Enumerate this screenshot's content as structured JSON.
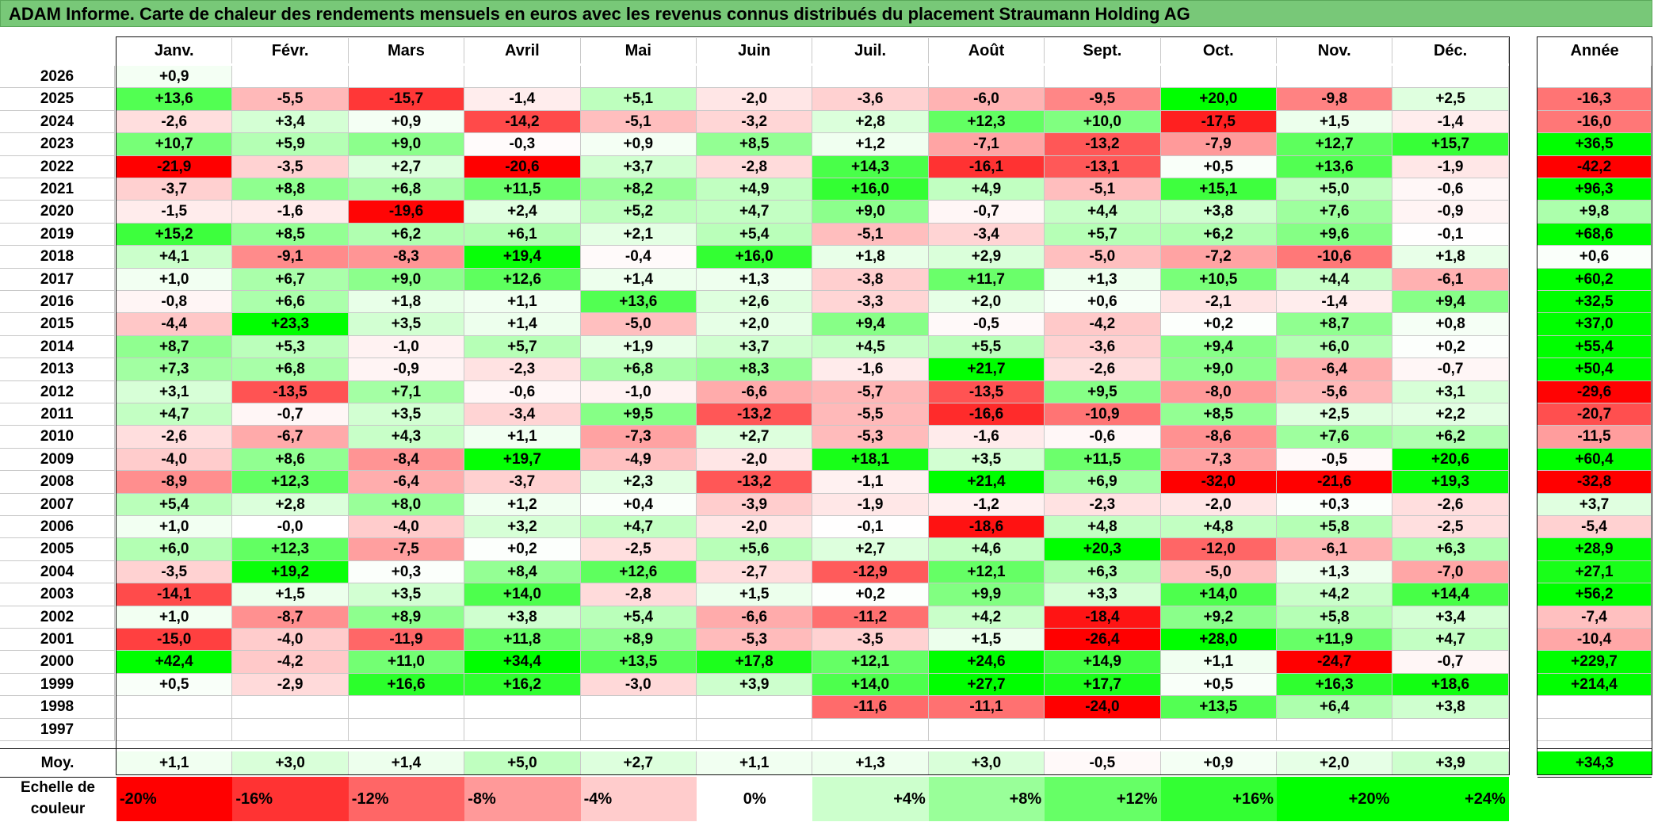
{
  "title": "ADAM Informe. Carte de chaleur des rendements mensuels en euros avec les revenus connus distribués du placement Straumann Holding AG",
  "chart_data": {
    "type": "heatmap",
    "title": "ADAM Informe. Carte de chaleur des rendements mensuels en euros avec les revenus connus distribués du placement Straumann Holding AG",
    "columns": [
      "Janv.",
      "Févr.",
      "Mars",
      "Avril",
      "Mai",
      "Juin",
      "Juil.",
      "Août",
      "Sept.",
      "Oct.",
      "Nov.",
      "Déc."
    ],
    "year_header": "Année",
    "rows": [
      {
        "year": "2026",
        "values": [
          "+0,9",
          "",
          "",
          "",
          "",
          "",
          "",
          "",
          "",
          "",
          "",
          ""
        ],
        "annual": ""
      },
      {
        "year": "2025",
        "values": [
          "+13,6",
          "-5,5",
          "-15,7",
          "-1,4",
          "+5,1",
          "-2,0",
          "-3,6",
          "-6,0",
          "-9,5",
          "+20,0",
          "-9,8",
          "+2,5"
        ],
        "annual": "-16,3"
      },
      {
        "year": "2024",
        "values": [
          "-2,6",
          "+3,4",
          "+0,9",
          "-14,2",
          "-5,1",
          "-3,2",
          "+2,8",
          "+12,3",
          "+10,0",
          "-17,5",
          "+1,5",
          "-1,4"
        ],
        "annual": "-16,0"
      },
      {
        "year": "2023",
        "values": [
          "+10,7",
          "+5,9",
          "+9,0",
          "-0,3",
          "+0,9",
          "+8,5",
          "+1,2",
          "-7,1",
          "-13,2",
          "-7,9",
          "+12,7",
          "+15,7"
        ],
        "annual": "+36,5"
      },
      {
        "year": "2022",
        "values": [
          "-21,9",
          "-3,5",
          "+2,7",
          "-20,6",
          "+3,7",
          "-2,8",
          "+14,3",
          "-16,1",
          "-13,1",
          "+0,5",
          "+13,6",
          "-1,9"
        ],
        "annual": "-42,2"
      },
      {
        "year": "2021",
        "values": [
          "-3,7",
          "+8,8",
          "+6,8",
          "+11,5",
          "+8,2",
          "+4,9",
          "+16,0",
          "+4,9",
          "-5,1",
          "+15,1",
          "+5,0",
          "-0,6"
        ],
        "annual": "+96,3"
      },
      {
        "year": "2020",
        "values": [
          "-1,5",
          "-1,6",
          "-19,6",
          "+2,4",
          "+5,2",
          "+4,7",
          "+9,0",
          "-0,7",
          "+4,4",
          "+3,8",
          "+7,6",
          "-0,9"
        ],
        "annual": "+9,8"
      },
      {
        "year": "2019",
        "values": [
          "+15,2",
          "+8,5",
          "+6,2",
          "+6,1",
          "+2,1",
          "+5,4",
          "-5,1",
          "-3,4",
          "+5,7",
          "+6,2",
          "+9,6",
          "-0,1"
        ],
        "annual": "+68,6"
      },
      {
        "year": "2018",
        "values": [
          "+4,1",
          "-9,1",
          "-8,3",
          "+19,4",
          "-0,4",
          "+16,0",
          "+1,8",
          "+2,9",
          "-5,0",
          "-7,2",
          "-10,6",
          "+1,8"
        ],
        "annual": "+0,6"
      },
      {
        "year": "2017",
        "values": [
          "+1,0",
          "+6,7",
          "+9,0",
          "+12,6",
          "+1,4",
          "+1,3",
          "-3,8",
          "+11,7",
          "+1,3",
          "+10,5",
          "+4,4",
          "-6,1"
        ],
        "annual": "+60,2"
      },
      {
        "year": "2016",
        "values": [
          "-0,8",
          "+6,6",
          "+1,8",
          "+1,1",
          "+13,6",
          "+2,6",
          "-3,3",
          "+2,0",
          "+0,6",
          "-2,1",
          "-1,4",
          "+9,4"
        ],
        "annual": "+32,5"
      },
      {
        "year": "2015",
        "values": [
          "-4,4",
          "+23,3",
          "+3,5",
          "+1,4",
          "-5,0",
          "+2,0",
          "+9,4",
          "-0,5",
          "-4,2",
          "+0,2",
          "+8,7",
          "+0,8"
        ],
        "annual": "+37,0"
      },
      {
        "year": "2014",
        "values": [
          "+8,7",
          "+5,3",
          "-1,0",
          "+5,7",
          "+1,9",
          "+3,7",
          "+4,5",
          "+5,5",
          "-3,6",
          "+9,4",
          "+6,0",
          "+0,2"
        ],
        "annual": "+55,4"
      },
      {
        "year": "2013",
        "values": [
          "+7,3",
          "+6,8",
          "-0,9",
          "-2,3",
          "+6,8",
          "+8,3",
          "-1,6",
          "+21,7",
          "-2,6",
          "+9,0",
          "-6,4",
          "-0,7"
        ],
        "annual": "+50,4"
      },
      {
        "year": "2012",
        "values": [
          "+3,1",
          "-13,5",
          "+7,1",
          "-0,6",
          "-1,0",
          "-6,6",
          "-5,7",
          "-13,5",
          "+9,5",
          "-8,0",
          "-5,6",
          "+3,1"
        ],
        "annual": "-29,6"
      },
      {
        "year": "2011",
        "values": [
          "+4,7",
          "-0,7",
          "+3,5",
          "-3,4",
          "+9,5",
          "-13,2",
          "-5,5",
          "-16,6",
          "-10,9",
          "+8,5",
          "+2,5",
          "+2,2"
        ],
        "annual": "-20,7"
      },
      {
        "year": "2010",
        "values": [
          "-2,6",
          "-6,7",
          "+4,3",
          "+1,1",
          "-7,3",
          "+2,7",
          "-5,3",
          "-1,6",
          "-0,6",
          "-8,6",
          "+7,6",
          "+6,2"
        ],
        "annual": "-11,5"
      },
      {
        "year": "2009",
        "values": [
          "-4,0",
          "+8,6",
          "-8,4",
          "+19,7",
          "-4,9",
          "-2,0",
          "+18,1",
          "+3,5",
          "+11,5",
          "-7,3",
          "-0,5",
          "+20,6"
        ],
        "annual": "+60,4"
      },
      {
        "year": "2008",
        "values": [
          "-8,9",
          "+12,3",
          "-6,4",
          "-3,7",
          "+2,3",
          "-13,2",
          "-1,1",
          "+21,4",
          "+6,9",
          "-32,0",
          "-21,6",
          "+19,3"
        ],
        "annual": "-32,8"
      },
      {
        "year": "2007",
        "values": [
          "+5,4",
          "+2,8",
          "+8,0",
          "+1,2",
          "+0,4",
          "-3,9",
          "-1,9",
          "-1,2",
          "-2,3",
          "-2,0",
          "+0,3",
          "-2,6"
        ],
        "annual": "+3,7"
      },
      {
        "year": "2006",
        "values": [
          "+1,0",
          "-0,0",
          "-4,0",
          "+3,2",
          "+4,7",
          "-2,0",
          "-0,1",
          "-18,6",
          "+4,8",
          "+4,8",
          "+5,8",
          "-2,5"
        ],
        "annual": "-5,4"
      },
      {
        "year": "2005",
        "values": [
          "+6,0",
          "+12,3",
          "-7,5",
          "+0,2",
          "-2,5",
          "+5,6",
          "+2,7",
          "+4,6",
          "+20,3",
          "-12,0",
          "-6,1",
          "+6,3"
        ],
        "annual": "+28,9"
      },
      {
        "year": "2004",
        "values": [
          "-3,5",
          "+19,2",
          "+0,3",
          "+8,4",
          "+12,6",
          "-2,7",
          "-12,9",
          "+12,1",
          "+6,3",
          "-5,0",
          "+1,3",
          "-7,0"
        ],
        "annual": "+27,1"
      },
      {
        "year": "2003",
        "values": [
          "-14,1",
          "+1,5",
          "+3,5",
          "+14,0",
          "-2,8",
          "+1,5",
          "+0,2",
          "+9,9",
          "+3,3",
          "+14,0",
          "+4,2",
          "+14,4"
        ],
        "annual": "+56,2"
      },
      {
        "year": "2002",
        "values": [
          "+1,0",
          "-8,7",
          "+8,9",
          "+3,8",
          "+5,4",
          "-6,6",
          "-11,2",
          "+4,2",
          "-18,4",
          "+9,2",
          "+5,8",
          "+3,4"
        ],
        "annual": "-7,4"
      },
      {
        "year": "2001",
        "values": [
          "-15,0",
          "-4,0",
          "-11,9",
          "+11,8",
          "+8,9",
          "-5,3",
          "-3,5",
          "+1,5",
          "-26,4",
          "+28,0",
          "+11,9",
          "+4,7"
        ],
        "annual": "-10,4"
      },
      {
        "year": "2000",
        "values": [
          "+42,4",
          "-4,2",
          "+11,0",
          "+34,4",
          "+13,5",
          "+17,8",
          "+12,1",
          "+24,6",
          "+14,9",
          "+1,1",
          "-24,7",
          "-0,7"
        ],
        "annual": "+229,7"
      },
      {
        "year": "1999",
        "values": [
          "+0,5",
          "-2,9",
          "+16,6",
          "+16,2",
          "-3,0",
          "+3,9",
          "+14,0",
          "+27,7",
          "+17,7",
          "+0,5",
          "+16,3",
          "+18,6"
        ],
        "annual": "+214,4"
      },
      {
        "year": "1998",
        "values": [
          "",
          "",
          "",
          "",
          "",
          "",
          "-11,6",
          "-11,1",
          "-24,0",
          "+13,5",
          "+6,4",
          "+3,8"
        ],
        "annual": ""
      },
      {
        "year": "1997",
        "values": [
          "",
          "",
          "",
          "",
          "",
          "",
          "",
          "",
          "",
          "",
          "",
          ""
        ],
        "annual": ""
      }
    ],
    "average": {
      "label": "Moy.",
      "values": [
        "+1,1",
        "+3,0",
        "+1,4",
        "+5,0",
        "+2,7",
        "+1,1",
        "+1,3",
        "+3,0",
        "-0,5",
        "+0,9",
        "+2,0",
        "+3,9"
      ],
      "annual": "+34,3"
    },
    "scale": {
      "label": "Echelle de couleur",
      "steps": [
        "-20%",
        "-16%",
        "-12%",
        "-8%",
        "-4%",
        "0%",
        "+4%",
        "+8%",
        "+12%",
        "+16%",
        "+20%",
        "+24%"
      ]
    },
    "colors": {
      "negative": "#ff0000",
      "neutral": "#ffffff",
      "positive": "#00ff00",
      "title_bg": "#78c878"
    }
  }
}
